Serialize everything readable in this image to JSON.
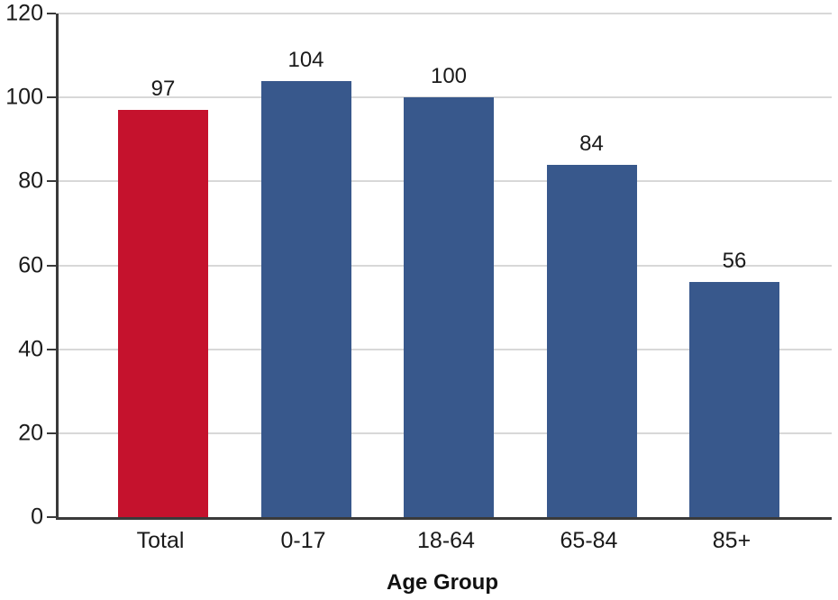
{
  "chart_data": {
    "type": "bar",
    "categories": [
      "Total",
      "0-17",
      "18-64",
      "65-84",
      "85+"
    ],
    "values": [
      97,
      104,
      100,
      84,
      56
    ],
    "bar_colors": [
      "#C5122D",
      "#38588C",
      "#38588C",
      "#38588C",
      "#38588C"
    ],
    "title": "",
    "xlabel": "Age Group",
    "ylabel": "",
    "ylim": [
      0,
      120
    ],
    "yticks": [
      0,
      20,
      40,
      60,
      80,
      100,
      120
    ],
    "grid": true,
    "legend": false,
    "highlight_category": "Total",
    "value_labels_shown": true
  },
  "colors": {
    "highlight_bar": "#C5122D",
    "default_bar": "#38588C",
    "gridline": "#D8D8D8",
    "axis": "#3A3A3A",
    "text": "#1A1A1A",
    "background": "#FFFFFF"
  }
}
